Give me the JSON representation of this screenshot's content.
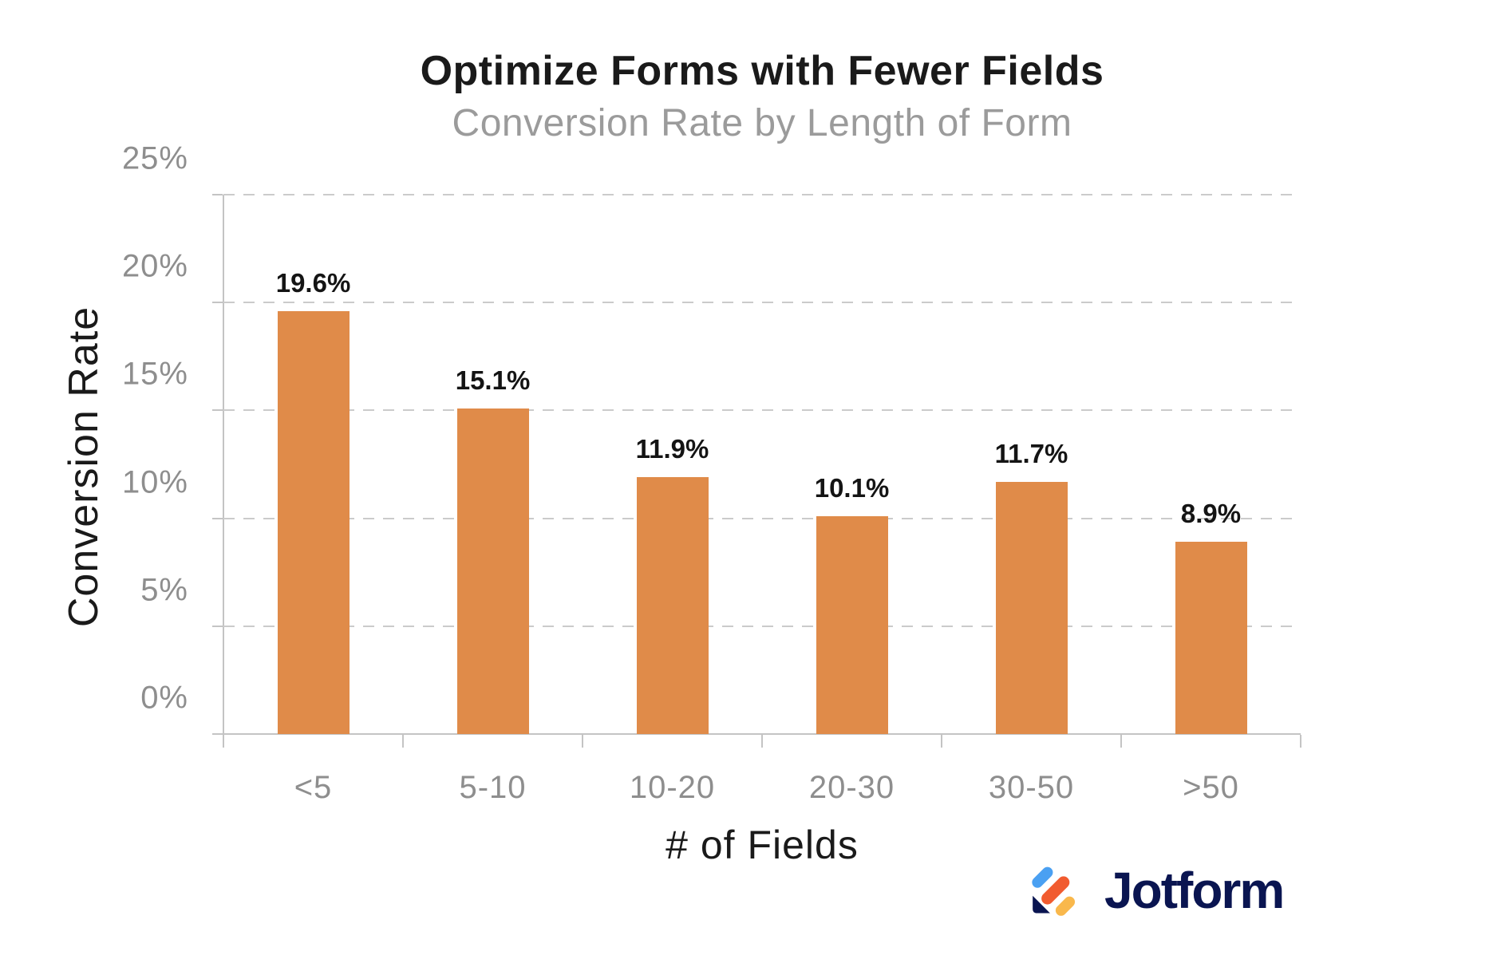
{
  "chart_data": {
    "type": "bar",
    "title": "Optimize Forms with Fewer Fields",
    "subtitle": "Conversion Rate by Length of Form",
    "xlabel": "# of Fields",
    "ylabel": "Conversion Rate",
    "categories": [
      "<5",
      "5-10",
      "10-20",
      "20-30",
      "30-50",
      ">50"
    ],
    "values": [
      19.6,
      15.1,
      11.9,
      10.1,
      11.7,
      8.9
    ],
    "value_labels": [
      "19.6%",
      "15.1%",
      "11.9%",
      "10.1%",
      "11.7%",
      "8.9%"
    ],
    "ylim": [
      0,
      25
    ],
    "y_ticks": [
      {
        "value": 0,
        "label": "0%"
      },
      {
        "value": 5,
        "label": "5%"
      },
      {
        "value": 10,
        "label": "10%"
      },
      {
        "value": 15,
        "label": "15%"
      },
      {
        "value": 20,
        "label": "20%"
      },
      {
        "value": 25,
        "label": "25%"
      }
    ],
    "grid": "horizontal-dashed",
    "legend": "none",
    "colors": {
      "bar": "#E08B49",
      "title": "#1A1A1A",
      "subtitle": "#9B9B9B",
      "tick_label": "#8E8E8E",
      "gridline": "#CBCBCB",
      "axis_line": "#C4C4C4",
      "data_label": "#141414"
    }
  },
  "branding": {
    "wordmark": "Jotform",
    "colors": {
      "navy": "#0A1551",
      "blue": "#4AA0F2",
      "orange": "#F15B2F",
      "yellow": "#F9B84C"
    }
  }
}
